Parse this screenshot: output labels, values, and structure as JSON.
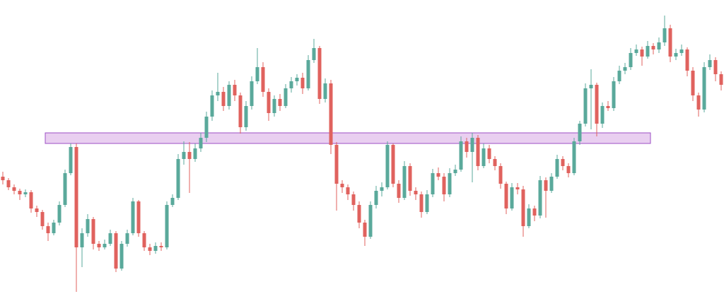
{
  "chart_data": {
    "type": "candlestick",
    "up_color": "#5aa99b",
    "down_color": "#e0625e",
    "ylim": [
      0,
      433
    ],
    "open": [
      183,
      178,
      168,
      163,
      158,
      161,
      138,
      133,
      113,
      103,
      118,
      143,
      188,
      225,
      83,
      103,
      123,
      88,
      83,
      88,
      103,
      53,
      88,
      103,
      148,
      103,
      83,
      78,
      85,
      83,
      143,
      153,
      208,
      218,
      208,
      223,
      238,
      268,
      298,
      303,
      283,
      313,
      298,
      253,
      283,
      318,
      338,
      303,
      273,
      293,
      283,
      308,
      318,
      323,
      308,
      348,
      365,
      293,
      315,
      228,
      173,
      168,
      158,
      143,
      118,
      98,
      143,
      163,
      168,
      228,
      173,
      153,
      198,
      163,
      158,
      133,
      158,
      188,
      183,
      158,
      188,
      193,
      233,
      218,
      238,
      198,
      223,
      208,
      198,
      173,
      138,
      168,
      165,
      113,
      138,
      128,
      178,
      163,
      183,
      208,
      198,
      188,
      233,
      258,
      308,
      313,
      258,
      283,
      280,
      318,
      333,
      338,
      358,
      363,
      353,
      368,
      363,
      373,
      393,
      353,
      358,
      363,
      333,
      298,
      278,
      338,
      348,
      328
    ],
    "high": [
      190,
      181,
      172,
      166,
      165,
      164,
      142,
      136,
      118,
      122,
      148,
      193,
      230,
      230,
      110,
      130,
      126,
      92,
      94,
      108,
      106,
      92,
      108,
      153,
      150,
      106,
      88,
      90,
      90,
      148,
      158,
      215,
      233,
      232,
      230,
      245,
      275,
      305,
      330,
      310,
      318,
      320,
      302,
      290,
      325,
      365,
      345,
      308,
      298,
      300,
      314,
      324,
      328,
      330,
      355,
      378,
      368,
      322,
      320,
      232,
      178,
      172,
      162,
      148,
      122,
      148,
      170,
      175,
      233,
      230,
      178,
      205,
      202,
      168,
      162,
      164,
      194,
      196,
      188,
      195,
      200,
      240,
      238,
      245,
      242,
      230,
      228,
      212,
      202,
      176,
      174,
      174,
      170,
      144,
      142,
      184,
      182,
      188,
      214,
      212,
      202,
      238,
      262,
      315,
      335,
      316,
      288,
      290,
      324,
      340,
      344,
      365,
      370,
      367,
      375,
      372,
      380,
      411,
      398,
      364,
      370,
      366,
      338,
      302,
      345,
      356,
      352,
      332
    ],
    "low": [
      172,
      164,
      158,
      150,
      154,
      132,
      126,
      108,
      92,
      100,
      114,
      140,
      185,
      20,
      55,
      98,
      80,
      78,
      80,
      85,
      48,
      50,
      84,
      100,
      98,
      78,
      72,
      74,
      78,
      80,
      140,
      150,
      200,
      160,
      204,
      218,
      232,
      262,
      290,
      276,
      278,
      290,
      244,
      248,
      278,
      314,
      296,
      262,
      268,
      276,
      280,
      302,
      312,
      300,
      305,
      344,
      286,
      288,
      215,
      135,
      160,
      150,
      135,
      110,
      85,
      95,
      138,
      155,
      165,
      168,
      146,
      150,
      156,
      150,
      125,
      130,
      154,
      178,
      148,
      154,
      184,
      190,
      210,
      175,
      192,
      195,
      202,
      192,
      166,
      130,
      135,
      158,
      98,
      110,
      120,
      124,
      125,
      160,
      180,
      192,
      182,
      185,
      228,
      254,
      250,
      240,
      252,
      276,
      276,
      314,
      328,
      334,
      354,
      340,
      350,
      356,
      358,
      368,
      345,
      348,
      354,
      325,
      290,
      268,
      274,
      334,
      318,
      305
    ],
    "close": [
      178,
      168,
      163,
      158,
      161,
      138,
      133,
      113,
      103,
      118,
      143,
      188,
      225,
      83,
      103,
      123,
      88,
      83,
      88,
      103,
      53,
      88,
      103,
      148,
      103,
      83,
      78,
      85,
      83,
      143,
      153,
      208,
      218,
      208,
      223,
      238,
      268,
      298,
      303,
      283,
      313,
      298,
      253,
      283,
      318,
      338,
      303,
      273,
      293,
      283,
      308,
      318,
      323,
      308,
      348,
      365,
      293,
      315,
      228,
      173,
      168,
      158,
      143,
      118,
      98,
      143,
      163,
      168,
      228,
      173,
      153,
      198,
      163,
      158,
      133,
      158,
      188,
      183,
      158,
      188,
      193,
      233,
      218,
      238,
      198,
      223,
      208,
      198,
      173,
      138,
      168,
      165,
      113,
      138,
      128,
      178,
      163,
      183,
      208,
      198,
      188,
      233,
      258,
      308,
      313,
      258,
      283,
      280,
      318,
      333,
      338,
      358,
      363,
      353,
      368,
      363,
      373,
      393,
      353,
      358,
      363,
      333,
      298,
      278,
      338,
      348,
      328,
      313
    ],
    "zone": {
      "low": 230,
      "high": 245,
      "from": 8,
      "to": 114,
      "fill": "#e9cff0",
      "stroke": "#9c4fc6"
    }
  }
}
